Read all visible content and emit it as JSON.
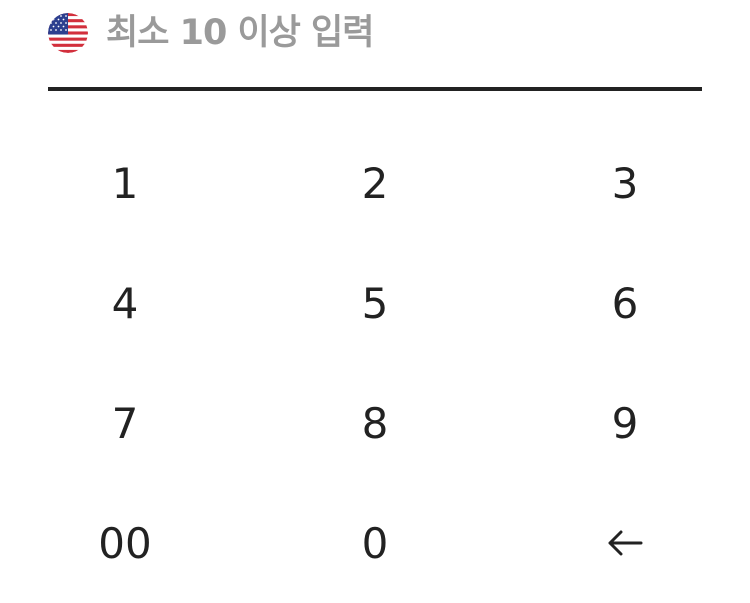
{
  "amount": {
    "currency_icon": "us-flag-icon",
    "placeholder": "최소 10 이상 입력",
    "value": ""
  },
  "keypad": {
    "keys": [
      "1",
      "2",
      "3",
      "4",
      "5",
      "6",
      "7",
      "8",
      "9",
      "00",
      "0"
    ],
    "backspace_icon": "arrow-left-icon"
  },
  "colors": {
    "text": "#222222",
    "placeholder": "#9a9a9a",
    "underline": "#222222",
    "background": "#ffffff"
  }
}
